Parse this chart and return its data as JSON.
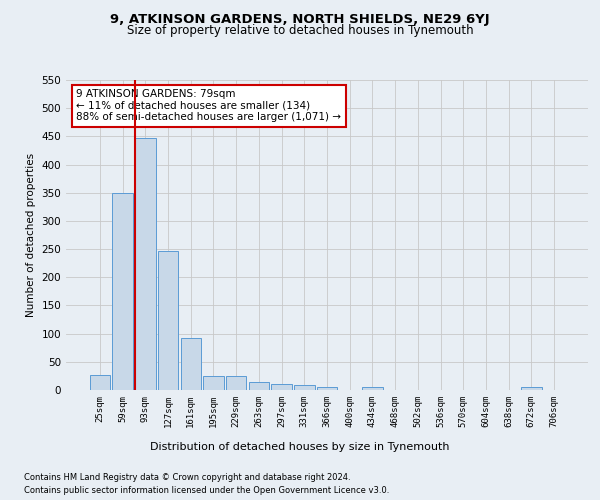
{
  "title1": "9, ATKINSON GARDENS, NORTH SHIELDS, NE29 6YJ",
  "title2": "Size of property relative to detached houses in Tynemouth",
  "xlabel": "Distribution of detached houses by size in Tynemouth",
  "ylabel": "Number of detached properties",
  "footnote1": "Contains HM Land Registry data © Crown copyright and database right 2024.",
  "footnote2": "Contains public sector information licensed under the Open Government Licence v3.0.",
  "categories": [
    "25sqm",
    "59sqm",
    "93sqm",
    "127sqm",
    "161sqm",
    "195sqm",
    "229sqm",
    "263sqm",
    "297sqm",
    "331sqm",
    "366sqm",
    "400sqm",
    "434sqm",
    "468sqm",
    "502sqm",
    "536sqm",
    "570sqm",
    "604sqm",
    "638sqm",
    "672sqm",
    "706sqm"
  ],
  "values": [
    27,
    350,
    447,
    247,
    93,
    25,
    25,
    14,
    11,
    8,
    6,
    0,
    5,
    0,
    0,
    0,
    0,
    0,
    0,
    5,
    0
  ],
  "bar_color": "#c8d8e8",
  "bar_edge_color": "#5b9bd5",
  "grid_color": "#c8c8c8",
  "vline_color": "#cc0000",
  "annotation_text": "9 ATKINSON GARDENS: 79sqm\n← 11% of detached houses are smaller (134)\n88% of semi-detached houses are larger (1,071) →",
  "annotation_box_color": "#ffffff",
  "annotation_box_edge": "#cc0000",
  "ylim": [
    0,
    550
  ],
  "yticks": [
    0,
    50,
    100,
    150,
    200,
    250,
    300,
    350,
    400,
    450,
    500,
    550
  ],
  "background_color": "#e8eef4",
  "plot_bg_color": "#e8eef4"
}
